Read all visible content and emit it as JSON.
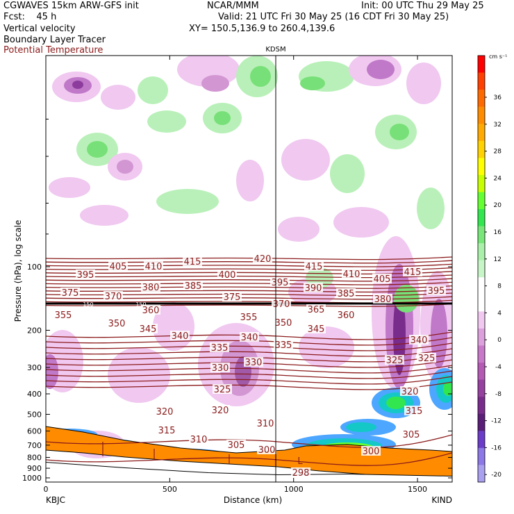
{
  "header": {
    "line1_left": "CGWAVES 15km ARW-GFS init",
    "line1_mid": "NCAR/MMM",
    "line1_right": "Init: 00 UTC Thu 29 May 25",
    "fcst": "Fcst:    45 h",
    "valid": "Valid: 21 UTC Fri 30 May 25 (16 CDT Fri 30 May 25)",
    "field1": "Vertical velocity",
    "xy": "XY= 150.5,136.9 to 260.4,139.6",
    "field2": "Boundary Layer Tracer",
    "field3": "Potential Temperature"
  },
  "station_marker": "KDSM",
  "colors": {
    "theta": "#8b1a1a",
    "tracer": "#ff8c00",
    "up_light": "#b9f0b9",
    "up_mid": "#78e078",
    "down_light": "#f0c8f0",
    "down_mid": "#d296d2",
    "down_dark": "#8c3c9c"
  },
  "chart_data": {
    "type": "heatmap",
    "title": "",
    "xlabel": "Distance (km)",
    "ylabel": "Pressure (hPa), log scale",
    "x_ticks": [
      0,
      500,
      1000,
      1500
    ],
    "xlim": [
      0,
      1640
    ],
    "y_ticks": [
      100,
      200,
      300,
      400,
      500,
      600,
      700,
      800,
      900,
      1000
    ],
    "y_scale": "log",
    "x_end_labels": {
      "left": "KBJC",
      "right": "KIND"
    },
    "colorbar": {
      "unit": "cm s⁻¹",
      "tick_labels": [
        "36",
        "32",
        "28",
        "24",
        "20",
        "16",
        "12",
        "8",
        "4",
        "0",
        "-4",
        "-8",
        "-12",
        "-16",
        "-20"
      ],
      "colors": [
        "#ff0000",
        "#ff4000",
        "#ff6a00",
        "#ff8c00",
        "#ffaa00",
        "#ffd200",
        "#ffff00",
        "#c8ff00",
        "#64ff32",
        "#32e650",
        "#78e678",
        "#aaf0aa",
        "#c8f5c8",
        "#ffffff",
        "#ffffff",
        "#f0c8f0",
        "#dca0dc",
        "#c878c8",
        "#b45ab4",
        "#9640a0",
        "#7a2c8c",
        "#5a1e78",
        "#6a3cc8",
        "#8c78e6",
        "#aaa0f0"
      ]
    },
    "theta_contour_labels": [
      "420",
      "415",
      "415",
      "415",
      "410",
      "410",
      "405",
      "405",
      "400",
      "395",
      "395",
      "395",
      "390",
      "385",
      "385",
      "380",
      "380",
      "375",
      "375",
      "370",
      "370",
      "365",
      "360",
      "360",
      "355",
      "355",
      "350",
      "350",
      "345",
      "345",
      "340",
      "340",
      "340",
      "335",
      "335",
      "330",
      "330",
      "325",
      "325",
      "325",
      "320",
      "320",
      "320",
      "315",
      "315",
      "310",
      "310",
      "305",
      "305",
      "300",
      "300",
      "298"
    ],
    "annotations": [
      "L",
      "150"
    ]
  }
}
